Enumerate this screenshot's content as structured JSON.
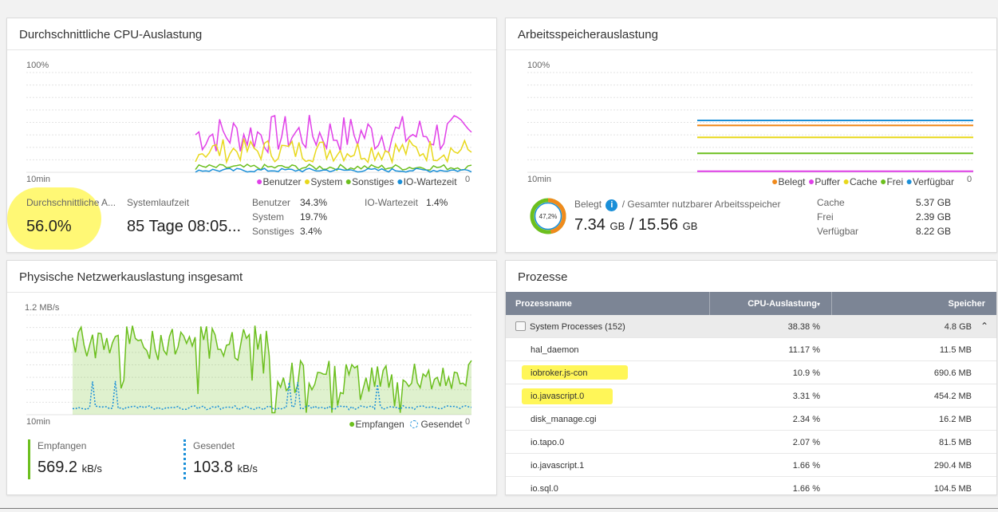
{
  "cpu": {
    "title": "Durchschnittliche CPU-Auslastung",
    "y_max_label": "100%",
    "x_left_label": "10min",
    "x_right_label": "0",
    "legend": [
      {
        "label": "Benutzer",
        "color": "#e040e8"
      },
      {
        "label": "System",
        "color": "#e8d81c"
      },
      {
        "label": "Sonstiges",
        "color": "#6cbf1e"
      },
      {
        "label": "IO-Wartezeit",
        "color": "#1a8fd8"
      }
    ],
    "avg_label": "Durchschnittliche A...",
    "avg_value": "56.0%",
    "uptime_label": "Systemlaufzeit",
    "uptime_value": "85 Tage 08:05...",
    "benutzer_label": "Benutzer",
    "benutzer_value": "34.3%",
    "system_label": "System",
    "system_value": "19.7%",
    "sonstiges_label": "Sonstiges",
    "sonstiges_value": "3.4%",
    "io_label": "IO-Wartezeit",
    "io_value": "1.4%"
  },
  "mem": {
    "title": "Arbeitsspeicherauslastung",
    "y_max_label": "100%",
    "x_left_label": "10min",
    "x_right_label": "0",
    "legend": [
      {
        "label": "Belegt",
        "color": "#f08a1c"
      },
      {
        "label": "Puffer",
        "color": "#e040e8"
      },
      {
        "label": "Cache",
        "color": "#e8d81c"
      },
      {
        "label": "Frei",
        "color": "#6cbf1e"
      },
      {
        "label": "Verfügbar",
        "color": "#1a8fd8"
      }
    ],
    "donut_percent": 47.2,
    "donut_label": "47,2%",
    "used_label": "Belegt",
    "info_icon": "info-icon",
    "total_label": "/ Gesamter nutzbarer Arbeitsspeicher",
    "used_value": "7.34",
    "used_unit": "GB",
    "slash": "/",
    "total_value": "15.56",
    "total_unit": "GB",
    "cache_label": "Cache",
    "cache_value": "5.37 GB",
    "frei_label": "Frei",
    "frei_value": "2.39 GB",
    "verf_label": "Verfügbar",
    "verf_value": "8.22 GB"
  },
  "net": {
    "title": "Physische Netzwerkauslastung insgesamt",
    "y_max_label": "1.2 MB/s",
    "x_left_label": "10min",
    "x_right_label": "0",
    "legend_rx": "Empfangen",
    "legend_tx": "Gesendet",
    "rx_label": "Empfangen",
    "rx_value": "569.2",
    "rx_unit": "kB/s",
    "tx_label": "Gesendet",
    "tx_value": "103.8",
    "tx_unit": "kB/s",
    "rx_color": "#6cbf1e",
    "tx_color": "#1a8fd8"
  },
  "proc": {
    "title": "Prozesse",
    "col_name": "Prozessname",
    "col_cpu": "CPU-Auslastung",
    "col_mem": "Speicher",
    "group": {
      "name": "System Processes (152)",
      "cpu": "38.38 %",
      "mem": "4.8 GB"
    },
    "rows": [
      {
        "name": "hal_daemon",
        "cpu": "11.17 %",
        "mem": "11.5 MB"
      },
      {
        "name": "iobroker.js-con",
        "cpu": "10.9 %",
        "mem": "690.6 MB"
      },
      {
        "name": "io.javascript.0",
        "cpu": "3.31 %",
        "mem": "454.2 MB"
      },
      {
        "name": "disk_manage.cgi",
        "cpu": "2.34 %",
        "mem": "16.2 MB"
      },
      {
        "name": "io.tapo.0",
        "cpu": "2.07 %",
        "mem": "81.5 MB"
      },
      {
        "name": "io.javascript.1",
        "cpu": "1.66 %",
        "mem": "290.4 MB"
      },
      {
        "name": "io.sql.0",
        "cpu": "1.66 %",
        "mem": "104.5 MB"
      }
    ]
  }
}
